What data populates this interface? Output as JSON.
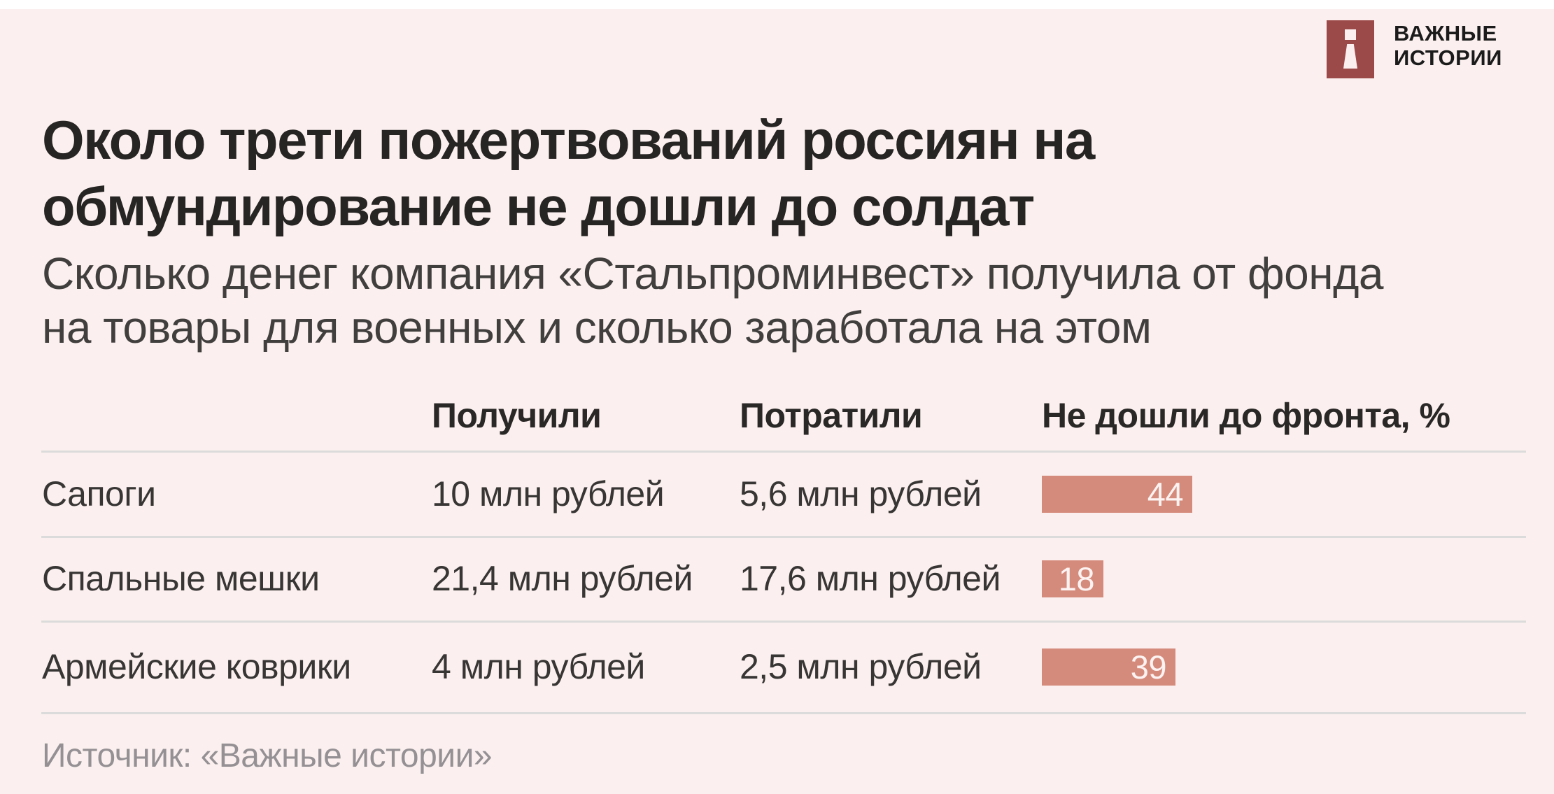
{
  "brand": {
    "name_line1": "ВАЖНЫЕ",
    "name_line2": "ИСТОРИИ",
    "logo_icon": "i-mark-icon"
  },
  "title": {
    "line1": "Около трети пожертвований россиян на",
    "line2": "обмундирование не дошли до солдат"
  },
  "subtitle": {
    "line1": "Сколько денег компания «Стальпроминвест» получила от фонда",
    "line2": "на товары для военных и сколько заработала на этом"
  },
  "table": {
    "columns": [
      "",
      "Получили",
      "Потратили",
      "Не дошли до фронта, %"
    ],
    "rows": [
      {
        "label": "Сапоги",
        "received": "10 млн рублей",
        "spent": "5,6 млн рублей",
        "pct": "44"
      },
      {
        "label": "Спальные мешки",
        "received": "21,4 млн рублей",
        "spent": "17,6 млн рублей",
        "pct": "18"
      },
      {
        "label": "Армейские коврики",
        "received": "4 млн рублей",
        "spent": "2,5 млн рублей",
        "pct": "39"
      }
    ]
  },
  "chart_data": {
    "type": "bar",
    "title": "Около трети пожертвований россиян на обмундирование не дошли до солдат",
    "subtitle": "Сколько денег компания «Стальпроминвест» получила от фонда на товары для военных и сколько заработала на этом",
    "categories": [
      "Сапоги",
      "Спальные мешки",
      "Армейские коврики"
    ],
    "series": [
      {
        "name": "Получили, млн рублей",
        "values": [
          10,
          21.4,
          4
        ]
      },
      {
        "name": "Потратили, млн рублей",
        "values": [
          5.6,
          17.6,
          2.5
        ]
      },
      {
        "name": "Не дошли до фронта, %",
        "values": [
          44,
          18,
          39
        ]
      }
    ],
    "bar_value_labels": [
      "44",
      "18",
      "39"
    ],
    "orientation": "horizontal",
    "grid": false,
    "legend": false,
    "xlim_percent": [
      0,
      100
    ]
  },
  "source": "Источник: «Важные истории»",
  "colors": {
    "background": "#fbf0ef",
    "top_strip": "#ffffff",
    "bar": "#d58b7b",
    "bar_label": "#fcf3f2",
    "logo": "#9c4949",
    "title_text": "#272424",
    "subtitle_text": "#413e3e",
    "divider": "#dcdbdb",
    "source_text": "#949093"
  }
}
